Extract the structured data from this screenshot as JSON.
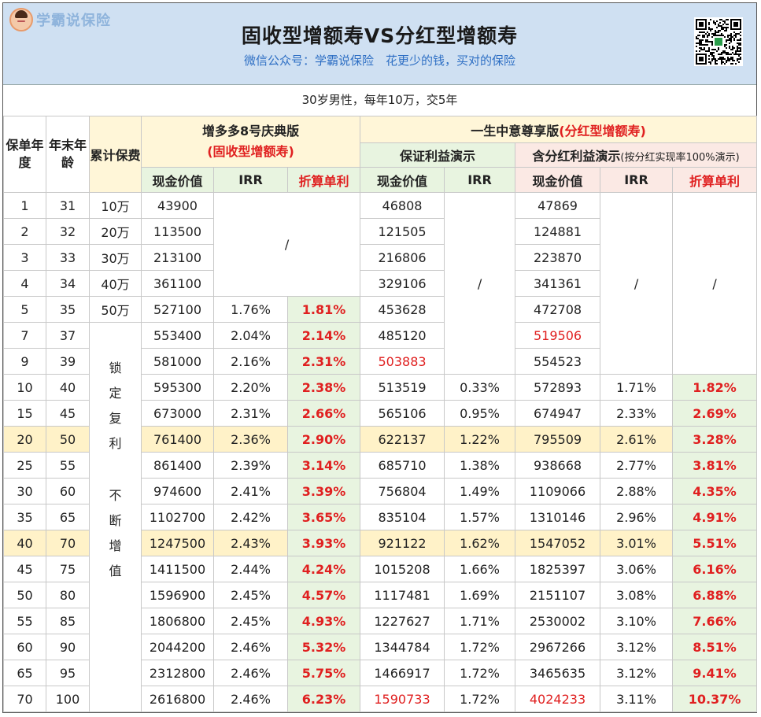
{
  "logo": {
    "text": "学霸说保险",
    "icon": "avatar-icon"
  },
  "title": "固收型增额寿VS分红型增额寿",
  "subtitle": "微信公众号：学霸说保险　花更少的钱，买对的保险",
  "condition": "30岁男性，每年10万，交5年",
  "headers": {
    "policy_year": "保单年度",
    "end_age": "年末年龄",
    "cum_premium": "累计保费",
    "product1_name": "增多多8号庆典版",
    "product1_type": "(固收型增额寿)",
    "product2_name": "一生中意尊享版",
    "product2_type": "(分红型增额寿)",
    "guaranteed_demo": "保证利益演示",
    "dividend_demo": "含分红利益演示",
    "dividend_note": "(按分红实现率100%演示)",
    "cash_value": "现金价值",
    "irr": "IRR",
    "simple_rate": "折算单利"
  },
  "slash": "/",
  "lock_text": [
    "锁",
    "定",
    "复",
    "利",
    "不",
    "断",
    "增",
    "值"
  ],
  "rows": [
    {
      "year": "1",
      "age": "31",
      "premium": "10万",
      "p1_cv": "43900",
      "p2_g_cv": "46808",
      "p2_d_cv": "47869"
    },
    {
      "year": "2",
      "age": "32",
      "premium": "20万",
      "p1_cv": "113500",
      "p2_g_cv": "121505",
      "p2_d_cv": "124881"
    },
    {
      "year": "3",
      "age": "33",
      "premium": "30万",
      "p1_cv": "213100",
      "p2_g_cv": "216806",
      "p2_d_cv": "223870"
    },
    {
      "year": "4",
      "age": "34",
      "premium": "40万",
      "p1_cv": "361100",
      "p2_g_cv": "329106",
      "p2_d_cv": "341361"
    },
    {
      "year": "5",
      "age": "35",
      "premium": "50万",
      "p1_cv": "527100",
      "p1_irr": "1.76%",
      "p1_sr": "1.81%",
      "p2_g_cv": "453628",
      "p2_d_cv": "472708"
    },
    {
      "year": "7",
      "age": "37",
      "p1_cv": "553400",
      "p1_irr": "2.04%",
      "p1_sr": "2.14%",
      "p2_g_cv": "485120",
      "p2_d_cv": "519506"
    },
    {
      "year": "9",
      "age": "39",
      "p1_cv": "581000",
      "p1_irr": "2.16%",
      "p1_sr": "2.31%",
      "p2_g_cv": "503883",
      "p2_d_cv": "554523"
    },
    {
      "year": "10",
      "age": "40",
      "p1_cv": "595300",
      "p1_irr": "2.20%",
      "p1_sr": "2.38%",
      "p2_g_cv": "513519",
      "p2_g_irr": "0.33%",
      "p2_d_cv": "572893",
      "p2_d_irr": "1.71%",
      "p2_d_sr": "1.82%"
    },
    {
      "year": "15",
      "age": "45",
      "p1_cv": "673000",
      "p1_irr": "2.31%",
      "p1_sr": "2.66%",
      "p2_g_cv": "565106",
      "p2_g_irr": "0.95%",
      "p2_d_cv": "674947",
      "p2_d_irr": "2.33%",
      "p2_d_sr": "2.69%"
    },
    {
      "year": "20",
      "age": "50",
      "p1_cv": "761400",
      "p1_irr": "2.36%",
      "p1_sr": "2.90%",
      "p2_g_cv": "622137",
      "p2_g_irr": "1.22%",
      "p2_d_cv": "795509",
      "p2_d_irr": "2.61%",
      "p2_d_sr": "3.28%"
    },
    {
      "year": "25",
      "age": "55",
      "p1_cv": "861400",
      "p1_irr": "2.39%",
      "p1_sr": "3.14%",
      "p2_g_cv": "685710",
      "p2_g_irr": "1.38%",
      "p2_d_cv": "938668",
      "p2_d_irr": "2.77%",
      "p2_d_sr": "3.81%"
    },
    {
      "year": "30",
      "age": "60",
      "p1_cv": "974600",
      "p1_irr": "2.41%",
      "p1_sr": "3.39%",
      "p2_g_cv": "756804",
      "p2_g_irr": "1.49%",
      "p2_d_cv": "1109066",
      "p2_d_irr": "2.88%",
      "p2_d_sr": "4.35%"
    },
    {
      "year": "35",
      "age": "65",
      "p1_cv": "1102700",
      "p1_irr": "2.42%",
      "p1_sr": "3.65%",
      "p2_g_cv": "835104",
      "p2_g_irr": "1.57%",
      "p2_d_cv": "1310146",
      "p2_d_irr": "2.96%",
      "p2_d_sr": "4.91%"
    },
    {
      "year": "40",
      "age": "70",
      "p1_cv": "1247500",
      "p1_irr": "2.43%",
      "p1_sr": "3.93%",
      "p2_g_cv": "921122",
      "p2_g_irr": "1.62%",
      "p2_d_cv": "1547052",
      "p2_d_irr": "3.01%",
      "p2_d_sr": "5.51%"
    },
    {
      "year": "45",
      "age": "75",
      "p1_cv": "1411500",
      "p1_irr": "2.44%",
      "p1_sr": "4.24%",
      "p2_g_cv": "1015208",
      "p2_g_irr": "1.66%",
      "p2_d_cv": "1825397",
      "p2_d_irr": "3.06%",
      "p2_d_sr": "6.16%"
    },
    {
      "year": "50",
      "age": "80",
      "p1_cv": "1596900",
      "p1_irr": "2.45%",
      "p1_sr": "4.57%",
      "p2_g_cv": "1117481",
      "p2_g_irr": "1.69%",
      "p2_d_cv": "2151107",
      "p2_d_irr": "3.08%",
      "p2_d_sr": "6.88%"
    },
    {
      "year": "55",
      "age": "85",
      "p1_cv": "1806800",
      "p1_irr": "2.45%",
      "p1_sr": "4.93%",
      "p2_g_cv": "1227627",
      "p2_g_irr": "1.71%",
      "p2_d_cv": "2530002",
      "p2_d_irr": "3.10%",
      "p2_d_sr": "7.66%"
    },
    {
      "year": "60",
      "age": "90",
      "p1_cv": "2044200",
      "p1_irr": "2.46%",
      "p1_sr": "5.32%",
      "p2_g_cv": "1344784",
      "p2_g_irr": "1.72%",
      "p2_d_cv": "2967266",
      "p2_d_irr": "3.12%",
      "p2_d_sr": "8.51%"
    },
    {
      "year": "65",
      "age": "95",
      "p1_cv": "2312800",
      "p1_irr": "2.46%",
      "p1_sr": "5.75%",
      "p2_g_cv": "1466917",
      "p2_g_irr": "1.72%",
      "p2_d_cv": "3465635",
      "p2_d_irr": "3.12%",
      "p2_d_sr": "9.41%"
    },
    {
      "year": "70",
      "age": "100",
      "p1_cv": "2616800",
      "p1_irr": "2.46%",
      "p1_sr": "6.23%",
      "p2_g_cv": "1590733",
      "p2_g_irr": "1.72%",
      "p2_d_cv": "4024233",
      "p2_d_irr": "3.11%",
      "p2_d_sr": "10.37%"
    }
  ],
  "colors": {
    "header_bg": "#cfe0f2",
    "accent_red": "#e02020",
    "subtitle_blue": "#2e6fc4",
    "cream": "#fff6d8",
    "green": "#e8f4e0",
    "pink": "#fbe9e4",
    "row_highlight": "#fff2c8"
  },
  "qr_icon": "qr-code-icon"
}
